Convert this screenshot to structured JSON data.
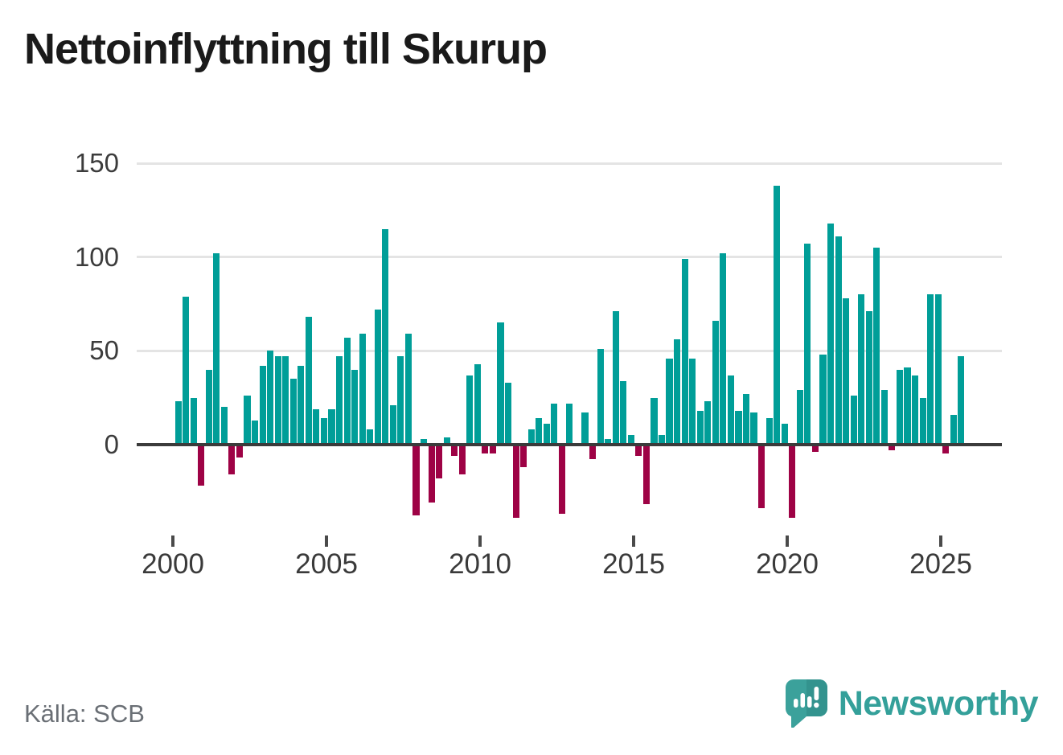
{
  "title": "Nettoinflyttning till Skurup",
  "source": {
    "text": "Källa: SCB"
  },
  "branding": {
    "name": "Newsworthy",
    "logo_icon": "newsworthy-speech-bubble-bar-chart-icon"
  },
  "colors": {
    "positive_bar": "#009e98",
    "negative_bar": "#9e0245",
    "brand": "#34a09a",
    "title_text": "#1a1a1a",
    "axis_text": "#3c3c3c",
    "source_text": "#6a6f75",
    "gridline": "#e4e4e4",
    "zero_line": "#3b3b3b",
    "background": "#ffffff"
  },
  "chart_data": {
    "type": "bar",
    "title": "Nettoinflyttning till Skurup",
    "frequency": "quarterly",
    "start_period": "2000 Q1",
    "end_period": "2025 Q3",
    "x_tick_labels": [
      "2000",
      "2005",
      "2010",
      "2015",
      "2020",
      "2025"
    ],
    "y_tick_labels": [
      "0",
      "50",
      "100",
      "150"
    ],
    "y_tick_values": [
      0,
      50,
      100,
      150
    ],
    "ylim": [
      -45,
      150
    ],
    "grid": "horizontal",
    "legend": "none",
    "series": [
      {
        "name": "Nettoinflyttning till Skurup",
        "values": [
          23,
          79,
          25,
          -21,
          40,
          102,
          20,
          -15,
          -6,
          26,
          13,
          42,
          50,
          47,
          47,
          35,
          42,
          68,
          19,
          14,
          19,
          47,
          57,
          40,
          59,
          8,
          72,
          115,
          21,
          47,
          59,
          -37,
          3,
          -30,
          -17,
          4,
          -5,
          -15,
          37,
          43,
          -4,
          -4,
          65,
          33,
          -38,
          -11,
          8,
          14,
          11,
          22,
          -36,
          22,
          0,
          17,
          -7,
          51,
          3,
          71,
          34,
          5,
          -5,
          -31,
          25,
          5,
          46,
          56,
          99,
          46,
          18,
          23,
          66,
          102,
          37,
          18,
          27,
          17,
          -33,
          14,
          138,
          11,
          -38,
          29,
          107,
          -3,
          48,
          118,
          111,
          78,
          26,
          80,
          71,
          105,
          29,
          -2,
          40,
          41,
          37,
          25,
          80,
          80,
          -4,
          16,
          47
        ]
      }
    ]
  }
}
